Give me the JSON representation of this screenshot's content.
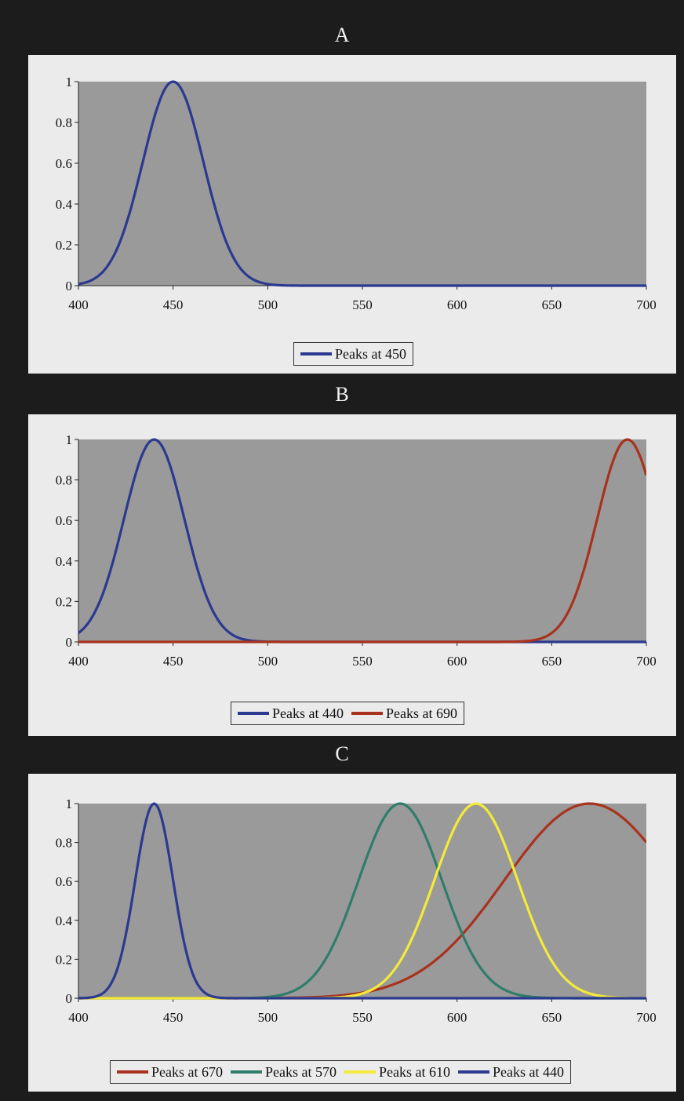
{
  "chart_data": [
    {
      "type": "line",
      "title": "A",
      "xlabel": "",
      "ylabel": "",
      "xlim": [
        400,
        700
      ],
      "ylim": [
        0,
        1
      ],
      "x_ticks": [
        "400",
        "450",
        "500",
        "550",
        "600",
        "650",
        "700"
      ],
      "y_ticks": [
        "0",
        "0.2",
        "0.4",
        "0.6",
        "0.8",
        "1"
      ],
      "grid": false,
      "legend_position": "bottom",
      "series": [
        {
          "name": "Peaks at 450",
          "color": "#2b3990",
          "peak": 450,
          "sigma": 16
        }
      ]
    },
    {
      "type": "line",
      "title": "B",
      "xlabel": "",
      "ylabel": "",
      "xlim": [
        400,
        700
      ],
      "ylim": [
        0,
        1
      ],
      "x_ticks": [
        "400",
        "450",
        "500",
        "550",
        "600",
        "650",
        "700"
      ],
      "y_ticks": [
        "0",
        "0.2",
        "0.4",
        "0.6",
        "0.8",
        "1"
      ],
      "grid": false,
      "legend_position": "bottom",
      "series": [
        {
          "name": "Peaks at 440",
          "color": "#2b3990",
          "peak": 440,
          "sigma": 16
        },
        {
          "name": "Peaks at 690",
          "color": "#a8321e",
          "peak": 690,
          "sigma": 16
        }
      ]
    },
    {
      "type": "line",
      "title": "C",
      "xlabel": "",
      "ylabel": "",
      "xlim": [
        400,
        700
      ],
      "ylim": [
        0,
        1
      ],
      "x_ticks": [
        "400",
        "450",
        "500",
        "550",
        "600",
        "650",
        "700"
      ],
      "y_ticks": [
        "0",
        "0.2",
        "0.4",
        "0.6",
        "0.8",
        "1"
      ],
      "grid": false,
      "legend_position": "bottom",
      "series": [
        {
          "name": "Peaks at 670",
          "color": "#a8321e",
          "peak": 670,
          "sigma": 45
        },
        {
          "name": "Peaks at 570",
          "color": "#2f7d6a",
          "peak": 570,
          "sigma": 22
        },
        {
          "name": "Peaks at 610",
          "color": "#f4ea3a",
          "peak": 610,
          "sigma": 22
        },
        {
          "name": "Peaks at 440",
          "color": "#2b3990",
          "peak": 440,
          "sigma": 10
        }
      ]
    }
  ]
}
